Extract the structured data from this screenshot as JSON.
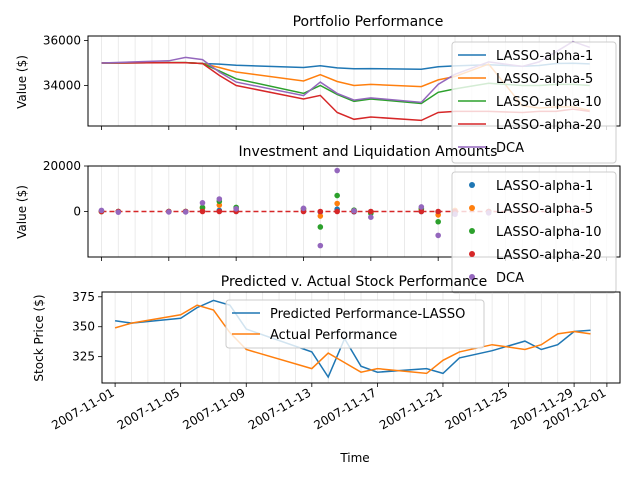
{
  "colors": {
    "blue": "#1f77b4",
    "orange": "#ff7f0e",
    "green": "#2ca02c",
    "red": "#d62728",
    "purple": "#9467bd",
    "grid": "#e6e6e6"
  },
  "xlabel": "Time",
  "chart_data": [
    {
      "type": "line",
      "title": "Portfolio Performance",
      "ylabel": "Value ($)",
      "ylim": [
        32200,
        36200
      ],
      "yticks": [
        34000,
        36000
      ],
      "ytick_labels": [
        "34000",
        "36000"
      ],
      "legend_position": "upper-right",
      "series": [
        {
          "name": "LASSO-alpha-1",
          "color": "blue",
          "x": [
            1,
            5,
            6,
            7,
            8,
            9,
            13,
            14,
            15,
            16,
            17,
            20,
            21,
            22,
            24,
            26,
            27,
            28,
            29,
            30
          ],
          "values": [
            35000,
            35020,
            35020,
            34980,
            34950,
            34900,
            34800,
            34880,
            34780,
            34740,
            34750,
            34720,
            34830,
            34870,
            34920,
            34860,
            34890,
            34980,
            34990,
            34960
          ]
        },
        {
          "name": "LASSO-alpha-5",
          "color": "orange",
          "x": [
            1,
            5,
            6,
            7,
            8,
            9,
            13,
            14,
            15,
            16,
            17,
            20,
            21,
            22,
            24,
            26,
            27,
            28,
            29,
            30
          ],
          "values": [
            35000,
            35020,
            35020,
            34980,
            34800,
            34600,
            34200,
            34480,
            34180,
            34000,
            34050,
            33950,
            34250,
            34400,
            34950,
            33100,
            33000,
            33050,
            33050,
            32900
          ]
        },
        {
          "name": "LASSO-alpha-10",
          "color": "green",
          "x": [
            1,
            5,
            6,
            7,
            8,
            9,
            13,
            14,
            15,
            16,
            17,
            20,
            21,
            22,
            24,
            26,
            27,
            28,
            29,
            30
          ],
          "values": [
            35000,
            35020,
            35020,
            34980,
            34650,
            34300,
            33650,
            34000,
            33600,
            33300,
            33400,
            33200,
            33700,
            33850,
            34100,
            34000,
            34000,
            34050,
            34050,
            34000
          ]
        },
        {
          "name": "LASSO-alpha-20",
          "color": "red",
          "x": [
            1,
            5,
            6,
            7,
            8,
            9,
            13,
            14,
            15,
            16,
            17,
            20,
            21,
            22,
            24,
            26,
            27,
            28,
            29,
            30
          ],
          "values": [
            35000,
            35010,
            35010,
            34980,
            34450,
            34000,
            33400,
            33560,
            32800,
            32500,
            32600,
            32450,
            32800,
            32850,
            32850,
            32800,
            32850,
            32850,
            32950,
            32850
          ]
        },
        {
          "name": "DCA",
          "color": "purple",
          "x": [
            1,
            5,
            6,
            7,
            8,
            9,
            13,
            14,
            15,
            16,
            17,
            20,
            21,
            22,
            24,
            26,
            27,
            28,
            29,
            30
          ],
          "values": [
            35000,
            35100,
            35250,
            35150,
            34600,
            34150,
            33550,
            34150,
            33650,
            33350,
            33450,
            33250,
            34050,
            34500,
            35050,
            34850,
            35050,
            35500,
            35950,
            35700
          ]
        }
      ]
    },
    {
      "type": "scatter",
      "title": "Investment and Liquidation Amounts",
      "ylabel": "Value ($)",
      "ylim": [
        -20000,
        20000
      ],
      "yticks": [
        0,
        20000
      ],
      "ytick_labels": [
        "0",
        "20000"
      ],
      "baseline": 0,
      "legend_position": "upper-right",
      "series": [
        {
          "name": "LASSO-alpha-1",
          "color": "blue",
          "x": [
            1,
            2,
            5,
            6,
            7,
            8,
            9,
            13,
            14,
            15,
            16,
            17,
            20,
            21,
            22,
            24
          ],
          "values": [
            0,
            0,
            0,
            0,
            200,
            500,
            100,
            200,
            -200,
            1000,
            -100,
            -100,
            0,
            -100,
            100,
            0
          ]
        },
        {
          "name": "LASSO-alpha-5",
          "color": "orange",
          "x": [
            1,
            2,
            5,
            6,
            7,
            8,
            9,
            13,
            14,
            15,
            16,
            17,
            20,
            21,
            22,
            24
          ],
          "values": [
            0,
            0,
            0,
            0,
            1500,
            2800,
            1200,
            1000,
            -2000,
            3500,
            500,
            -500,
            1000,
            -1500,
            500,
            0
          ]
        },
        {
          "name": "LASSO-alpha-10",
          "color": "green",
          "x": [
            1,
            2,
            5,
            6,
            7,
            8,
            9,
            13,
            14,
            15,
            16,
            17,
            20,
            21,
            22,
            24
          ],
          "values": [
            0,
            0,
            0,
            0,
            1800,
            4500,
            1800,
            1200,
            -6800,
            7000,
            600,
            -800,
            1200,
            -4500,
            -500,
            0
          ]
        },
        {
          "name": "LASSO-alpha-20",
          "color": "red",
          "x": [
            1,
            2,
            5,
            6,
            7,
            8,
            9,
            13,
            14,
            15,
            16,
            17,
            20,
            21,
            22,
            24
          ],
          "values": [
            0,
            0,
            0,
            0,
            0,
            0,
            0,
            0,
            0,
            0,
            0,
            0,
            0,
            0,
            0,
            0
          ]
        },
        {
          "name": "DCA",
          "color": "purple",
          "x": [
            1,
            2,
            5,
            6,
            7,
            8,
            9,
            13,
            14,
            15,
            16,
            17,
            20,
            21,
            22,
            24
          ],
          "values": [
            500,
            -300,
            -200,
            -200,
            3800,
            5500,
            1200,
            1400,
            -15000,
            18000,
            300,
            -2500,
            2000,
            -10500,
            -1200,
            -600
          ]
        }
      ]
    },
    {
      "type": "line",
      "title": "Predicted v. Actual Stock Performance",
      "ylabel": "Stock Price ($)",
      "ylim": [
        303,
        379
      ],
      "yticks": [
        325,
        350,
        375
      ],
      "ytick_labels": [
        "325",
        "350",
        "375"
      ],
      "legend_position": "upper-center",
      "series": [
        {
          "name": "Predicted Performance-LASSO",
          "color": "blue",
          "x": [
            1,
            2,
            5,
            6,
            7,
            8,
            9,
            13,
            14,
            15,
            16,
            17,
            20,
            21,
            22,
            24,
            26,
            27,
            28,
            29,
            30
          ],
          "values": [
            355,
            353,
            357,
            366,
            372,
            368,
            348,
            329,
            308,
            340,
            317,
            312,
            315,
            311,
            324,
            330,
            338,
            331,
            335,
            346,
            347
          ]
        },
        {
          "name": "Actual Performance",
          "color": "orange",
          "x": [
            1,
            2,
            5,
            6,
            7,
            8,
            9,
            13,
            14,
            15,
            16,
            17,
            20,
            21,
            22,
            24,
            26,
            27,
            28,
            29,
            30
          ],
          "values": [
            349,
            353,
            360,
            368,
            364,
            345,
            331,
            315,
            328,
            320,
            312,
            315,
            311,
            322,
            329,
            335,
            331,
            335,
            344,
            346,
            344
          ]
        }
      ]
    }
  ],
  "xticks": [
    1,
    5,
    9,
    13,
    17,
    21,
    25,
    29,
    31
  ],
  "xtick_labels": [
    "2007-11-01",
    "2007-11-05",
    "2007-11-09",
    "2007-11-13",
    "2007-11-17",
    "2007-11-21",
    "2007-11-25",
    "2007-11-29",
    "2007-12-01"
  ]
}
